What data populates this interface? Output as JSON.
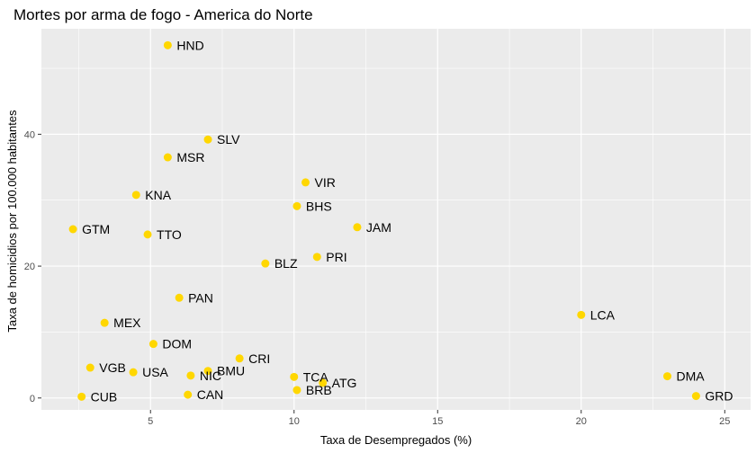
{
  "chart_data": {
    "type": "scatter",
    "title": "Mortes por arma de fogo - America do Norte",
    "xlabel": "Taxa de Desempregados (%)",
    "ylabel": "Taxa de homicidios por 100.000 habitantes",
    "xlim": [
      1.2,
      25.9
    ],
    "ylim": [
      -1.8,
      56.0
    ],
    "x_ticks": [
      5,
      10,
      15,
      20,
      25
    ],
    "x_tick_labels": [
      "5",
      "10",
      "15",
      "20",
      "25"
    ],
    "y_ticks": [
      0,
      20,
      40
    ],
    "y_tick_labels": [
      "0",
      "20",
      "40"
    ],
    "grid": true,
    "point_color": "#FFD700",
    "panel_color": "#EBEBEB",
    "points": [
      {
        "label": "HND",
        "x": 5.6,
        "y": 53.5
      },
      {
        "label": "SLV",
        "x": 7.0,
        "y": 39.2
      },
      {
        "label": "MSR",
        "x": 5.6,
        "y": 36.5
      },
      {
        "label": "VIR",
        "x": 10.4,
        "y": 32.7
      },
      {
        "label": "KNA",
        "x": 4.5,
        "y": 30.8
      },
      {
        "label": "BHS",
        "x": 10.1,
        "y": 29.1
      },
      {
        "label": "JAM",
        "x": 12.2,
        "y": 25.9
      },
      {
        "label": "GTM",
        "x": 2.3,
        "y": 25.6
      },
      {
        "label": "TTO",
        "x": 4.9,
        "y": 24.8
      },
      {
        "label": "PRI",
        "x": 10.8,
        "y": 21.4
      },
      {
        "label": "BLZ",
        "x": 9.0,
        "y": 20.4
      },
      {
        "label": "PAN",
        "x": 6.0,
        "y": 15.2
      },
      {
        "label": "LCA",
        "x": 20.0,
        "y": 12.6
      },
      {
        "label": "MEX",
        "x": 3.4,
        "y": 11.4
      },
      {
        "label": "DOM",
        "x": 5.1,
        "y": 8.2
      },
      {
        "label": "CRI",
        "x": 8.1,
        "y": 6.0
      },
      {
        "label": "VGB",
        "x": 2.9,
        "y": 4.6
      },
      {
        "label": "USA",
        "x": 4.4,
        "y": 3.9
      },
      {
        "label": "BMU",
        "x": 7.0,
        "y": 4.1
      },
      {
        "label": "NIC",
        "x": 6.4,
        "y": 3.4
      },
      {
        "label": "TCA",
        "x": 10.0,
        "y": 3.2
      },
      {
        "label": "DMA",
        "x": 23.0,
        "y": 3.3
      },
      {
        "label": "ATG",
        "x": 11.0,
        "y": 2.3
      },
      {
        "label": "BRB",
        "x": 10.1,
        "y": 1.2
      },
      {
        "label": "CAN",
        "x": 6.3,
        "y": 0.5
      },
      {
        "label": "CUB",
        "x": 2.6,
        "y": 0.2
      },
      {
        "label": "GRD",
        "x": 24.0,
        "y": 0.3
      }
    ]
  }
}
